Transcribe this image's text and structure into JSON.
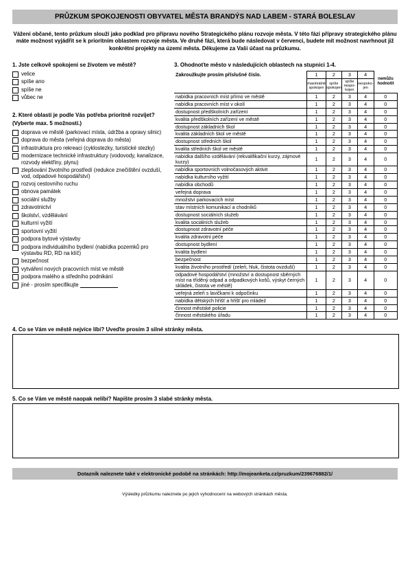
{
  "title": "PRŮZKUM SPOKOJENOSTI OBYVATEL MĚSTA BRANDÝS NAD LABEM - STARÁ BOLESLAV",
  "intro": "Vážení občané, tento průzkum slouží jako podklad pro přípravu nového Strategického plánu rozvoje města. V této fázi přípravy strategického plánu máte možnost vyjádřit se k prioritním oblastem rozvoje města. Ve druhé fázi, která bude následovat v červenci, budete mít možnost navrhnout již konkrétní projekty na území města. Děkujeme za Vaši účast na průzkumu.",
  "q1": {
    "heading": "1. Jste celkově spokojeni se životem ve městě?",
    "options": [
      "velice",
      "spíše ano",
      "spíše ne",
      "vůbec ne"
    ]
  },
  "q2": {
    "heading": "2. Které oblasti je podle Vás potřeba prioritně rozvíjet?",
    "sub": "(Vyberte max. 5 možností.)",
    "options": [
      "doprava ve městě (parkovací místa, údržba a opravy silnic)",
      "doprava do města (veřejná doprava do města)",
      "infrastruktura pro rekreaci (cyklostezky, turistické stezky)",
      "modernizace technické infrastruktury (vodovody, kanalizace, rozvody elektřiny, plynu)",
      "zlepšování životního prostředí (redukce znečištění ovzduší, vod, odpadové hospodářství)",
      "rozvoj cestovního ruchu",
      "obnova památek",
      "sociální služby",
      "zdravotnictví",
      "školství, vzdělávání",
      "kulturní vyžití",
      "sportovní vyžití",
      "podpora bytové výstavby",
      "podpora individuálního bydlení (nabídka pozemků pro výstavbu RD, RD na klíč)",
      "bezpečnost",
      "vytváření nových pracovních míst ve městě",
      "podpora malého a středního podnikání",
      "jiné - prosím specifikujte"
    ]
  },
  "q3": {
    "heading": "3. Ohodnoťte město v následujících oblastech na stupnici 1-4.",
    "sub": "Zakroužkujte prosím příslušné číslo.",
    "scale_nums": [
      "1",
      "2",
      "3",
      "4"
    ],
    "scale_labels": [
      "maximálně spokojen",
      "spíše spokojen",
      "spíše nespo-kojen",
      "nespoko-jen",
      "nemůžu hodnotit"
    ],
    "rows": [
      "nabídka pracovních míst přímo ve městě",
      "nabídka pracovních míst v okolí",
      "dostupnost předškolních zařízení",
      "kvalita předškolních zařízení ve městě",
      "dostupnost základních škol",
      "kvalita základních škol ve městě",
      "dostupnost středních škol",
      "kvalita středních škol ve městě",
      "nabídka dalšího vzdělávání (rekvalifikační kurzy, zájmové kurzy)",
      "nabídka sportovních volnočasových aktivit",
      "nabídka kulturního vyžití",
      "nabídka obchodů",
      "veřejná doprava",
      "množství parkovacích míst",
      "stav místních komunikací a chodníků",
      "dostupnost sociálních služeb",
      "kvalita sociálních služeb",
      "dostupnost zdravotní péče",
      "kvalita zdravotní péče",
      "dostupnost bydlení",
      "kvalita bydlení",
      "bezpečnost",
      "kvalita životního prostředí (zeleň, hluk, čistota ovzduší)",
      "odpadové hospodářství (množství a dostupnost sběrných míst na tříděný odpad a odpadkových košů, výskyt černých skládek, čistota ve městě)",
      "veřejná zeleň s lavičkami k odpočinku",
      "nabídka dětských hřišť a hřišť pro mládež",
      "činnost městské policie",
      "činnost městského úřadu"
    ],
    "cell_vals": [
      "1",
      "2",
      "3",
      "4",
      "0"
    ]
  },
  "q4": "4. Co se Vám ve městě nejvíce líbí? Uveďte prosím 3 silné stránky města.",
  "q5": "5. Co se Vám ve městě naopak nelíbí? Napište prosím 3 slabé stránky města.",
  "footer": "Dotazník naleznete také v elektronické podobě na stránkách:  http://mojeanketa.cz/pruzkum/239676882/1/",
  "footer_note": "Výsledky průzkumu naleznete po jejich vyhodnocení na webových stránkách města."
}
